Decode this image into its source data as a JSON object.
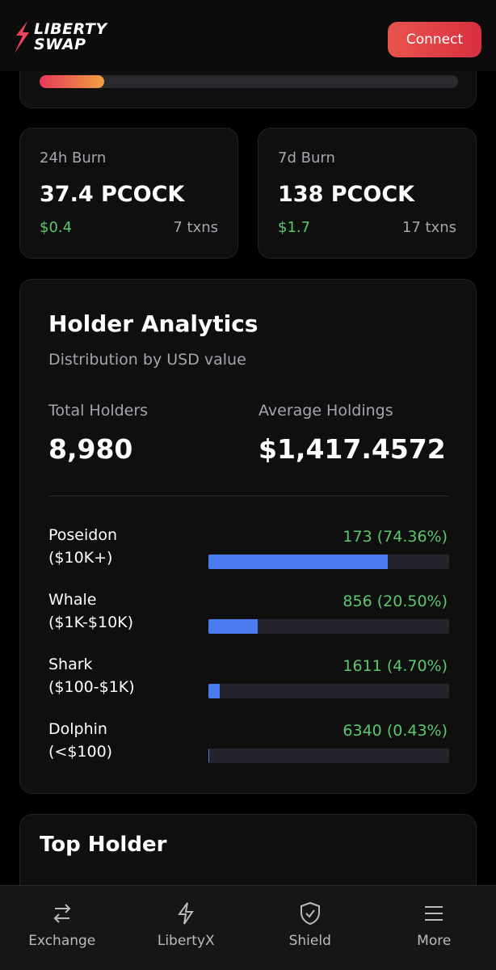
{
  "header": {
    "logo_top": "LIBERTY",
    "logo_bottom": "SWAP",
    "connect": "Connect"
  },
  "burn_cards": [
    {
      "title": "24h Burn",
      "amount": "37.4 PCOCK",
      "usd": "$0.4",
      "txns": "7 txns"
    },
    {
      "title": "7d Burn",
      "amount": "138 PCOCK",
      "usd": "$1.7",
      "txns": "17 txns"
    }
  ],
  "holder_analytics": {
    "title": "Holder Analytics",
    "subtitle": "Distribution by USD value",
    "total_label": "Total Holders",
    "total_value": "8,980",
    "average_label": "Average Holdings",
    "average_value": "$1,417.4572",
    "tiers": [
      {
        "name": "Poseidon",
        "range": "($10K+)",
        "label": "173 (74.36%)",
        "share": 74.36
      },
      {
        "name": "Whale",
        "range": "($1K-$10K)",
        "label": "856 (20.50%)",
        "share": 20.5
      },
      {
        "name": "Shark",
        "range": "($100-$1K)",
        "label": "1611 (4.70%)",
        "share": 4.7
      },
      {
        "name": "Dolphin",
        "range": "(<$100)",
        "label": "6340 (0.43%)",
        "share": 0.43
      }
    ]
  },
  "top_holder": {
    "title": "Top Holder"
  },
  "nav": [
    "Exchange",
    "LibertyX",
    "Shield",
    "More"
  ]
}
